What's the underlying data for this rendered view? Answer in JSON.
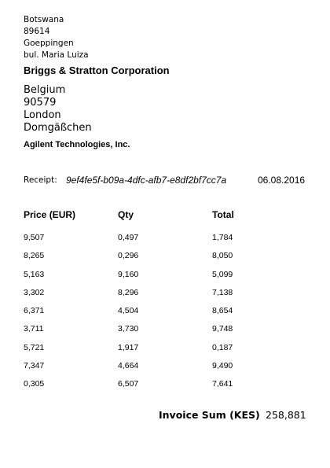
{
  "sender": {
    "country": "Botswana",
    "postcode": "89614",
    "city": "Goeppingen",
    "street": "bul. Maria Luiza"
  },
  "company_primary": "Briggs & Stratton Corporation",
  "recipient": {
    "country": "Belgium",
    "postcode": "90579",
    "city": "London",
    "street": "Domgäßchen"
  },
  "company_secondary": "Agilent Technologies, Inc.",
  "receipt": {
    "label": "Receipt:",
    "id": "9ef4fe5f-b09a-4dfc-afb7-e8df2bf7cc7a",
    "date": "06.08.2016"
  },
  "table": {
    "headers": [
      "Price (EUR)",
      "Qty",
      "Total"
    ],
    "rows": [
      [
        "9,507",
        "0,497",
        "1,784"
      ],
      [
        "8,265",
        "0,296",
        "8,050"
      ],
      [
        "5,163",
        "9,160",
        "5,099"
      ],
      [
        "3,302",
        "8,296",
        "7,138"
      ],
      [
        "6,371",
        "4,504",
        "8,654"
      ],
      [
        "3,711",
        "3,730",
        "9,748"
      ],
      [
        "5,721",
        "1,917",
        "0,187"
      ],
      [
        "7,347",
        "4,664",
        "9,490"
      ],
      [
        "0,305",
        "6,507",
        "7,641"
      ]
    ]
  },
  "invoice": {
    "label": "Invoice Sum (KES)",
    "value": "258,881"
  }
}
